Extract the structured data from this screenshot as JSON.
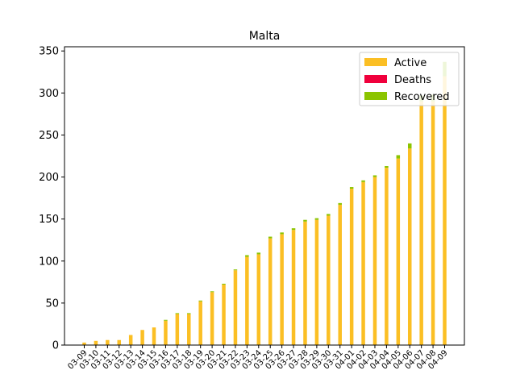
{
  "chart_data": {
    "type": "bar",
    "stacked": true,
    "title": "Malta",
    "xlabel": "",
    "ylabel": "",
    "ylim": [
      0,
      355
    ],
    "yticks": [
      0,
      50,
      100,
      150,
      200,
      250,
      300,
      350
    ],
    "grid": false,
    "legend_position": "top-right",
    "categories": [
      "03-09",
      "03-10",
      "03-11",
      "03-12",
      "03-13",
      "03-14",
      "03-15",
      "03-16",
      "03-17",
      "03-18",
      "03-19",
      "03-20",
      "03-21",
      "03-22",
      "03-23",
      "03-24",
      "03-25",
      "03-26",
      "03-27",
      "03-28",
      "03-29",
      "03-30",
      "03-31",
      "04-01",
      "04-02",
      "04-03",
      "04-04",
      "04-05",
      "04-06",
      "04-07",
      "04-08",
      "04-09"
    ],
    "series": [
      {
        "name": "Active",
        "color": "#fbbf24",
        "values": [
          3,
          5,
          6,
          6,
          12,
          18,
          21,
          29,
          37,
          37,
          52,
          63,
          72,
          89,
          105,
          108,
          127,
          132,
          137,
          147,
          149,
          154,
          167,
          186,
          194,
          200,
          211,
          222,
          234,
          290,
          290,
          320
        ]
      },
      {
        "name": "Deaths",
        "color": "#f0003c",
        "values": [
          0,
          0,
          0,
          0,
          0,
          0,
          0,
          0,
          0,
          0,
          0,
          0,
          0,
          0,
          0,
          0,
          0,
          0,
          0,
          0,
          0,
          0,
          0,
          0,
          0,
          0,
          0,
          0,
          0,
          0,
          0,
          0
        ]
      },
      {
        "name": "Recovered",
        "color": "#8bc400",
        "values": [
          0,
          0,
          0,
          0,
          0,
          0,
          0,
          1,
          1,
          1,
          1,
          1,
          1,
          1,
          2,
          2,
          2,
          2,
          2,
          2,
          2,
          2,
          2,
          2,
          2,
          2,
          2,
          4,
          6,
          7,
          8,
          17
        ]
      }
    ]
  }
}
